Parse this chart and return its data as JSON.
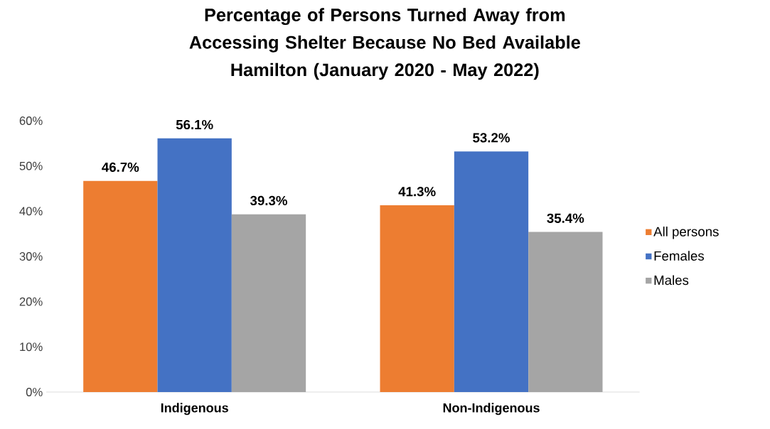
{
  "chart_data": {
    "type": "bar",
    "title": "Percentage of Persons Turned Away from Accessing Shelter Because No Bed Available",
    "subtitle": "Hamilton (January 2020 - May 2022)",
    "categories": [
      "Indigenous",
      "Non-Indigenous"
    ],
    "series": [
      {
        "name": "All persons",
        "color": "#ed7d31",
        "values": [
          46.7,
          41.3
        ],
        "value_labels": [
          "46.7%",
          "41.3%"
        ]
      },
      {
        "name": "Females",
        "color": "#4472c4",
        "values": [
          56.1,
          53.2
        ],
        "value_labels": [
          "56.1%",
          "53.2%"
        ]
      },
      {
        "name": "Males",
        "color": "#a5a5a5",
        "values": [
          39.3,
          35.4
        ],
        "value_labels": [
          "39.3%",
          "35.4%"
        ]
      }
    ],
    "ylim": [
      0,
      60
    ],
    "yticks": [
      {
        "value": 0,
        "label": "0%"
      },
      {
        "value": 10,
        "label": "10%"
      },
      {
        "value": 20,
        "label": "20%"
      },
      {
        "value": 30,
        "label": "30%"
      },
      {
        "value": 40,
        "label": "40%"
      },
      {
        "value": 50,
        "label": "50%"
      },
      {
        "value": 60,
        "label": "60%"
      }
    ],
    "legend": "right"
  }
}
